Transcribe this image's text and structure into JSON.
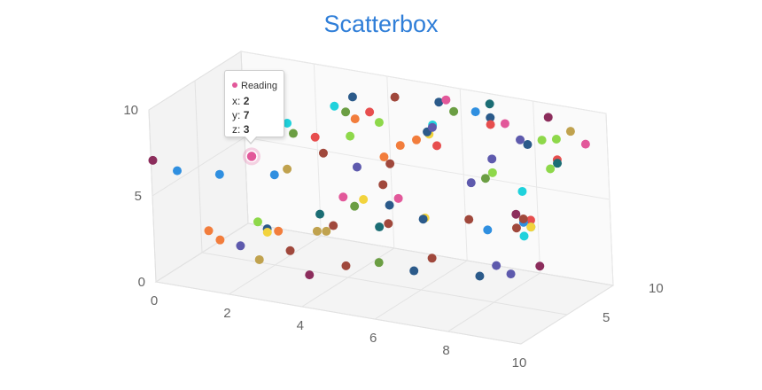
{
  "chart_data": {
    "type": "scatter",
    "title": "Scatterbox",
    "xlim": [
      0,
      10
    ],
    "ylim": [
      0,
      10
    ],
    "zlim": [
      0,
      10
    ],
    "x_ticks": [
      "0",
      "2",
      "4",
      "6",
      "8",
      "10"
    ],
    "y_ticks": [
      "0",
      "5",
      "10"
    ],
    "z_ticks": [
      "5",
      "10"
    ],
    "grid": true,
    "series": [
      {
        "name": "Reading",
        "points": [
          {
            "x": 2,
            "y": 7,
            "z": 3,
            "color": "#e2589a"
          },
          {
            "x": 0,
            "y": 7,
            "z": 0.2,
            "color": "#8c2d5c"
          },
          {
            "x": 0.4,
            "y": 6.2,
            "z": 1.2,
            "color": "#2f8fe0"
          },
          {
            "x": 1.6,
            "y": 9,
            "z": 4.2,
            "color": "#f2d33d"
          },
          {
            "x": 1.2,
            "y": 5.8,
            "z": 2.6,
            "color": "#2f8fe0"
          },
          {
            "x": 2.4,
            "y": 5.8,
            "z": 3.8,
            "color": "#2f8fe0"
          },
          {
            "x": 2.6,
            "y": 6,
            "z": 4.4,
            "color": "#c0a24e"
          },
          {
            "x": 2.6,
            "y": 8.6,
            "z": 4.6,
            "color": "#1fd2dc"
          },
          {
            "x": 2.6,
            "y": 7.8,
            "z": 5.2,
            "color": "#6b9e43"
          },
          {
            "x": 3.4,
            "y": 9.2,
            "z": 6.6,
            "color": "#1fd2dc"
          },
          {
            "x": 3.6,
            "y": 8.8,
            "z": 7,
            "color": "#6b9e43"
          },
          {
            "x": 3.8,
            "y": 8.4,
            "z": 7.2,
            "color": "#f27d3c"
          },
          {
            "x": 3.6,
            "y": 9.4,
            "z": 7.8,
            "color": "#2b5a8a"
          },
          {
            "x": 4,
            "y": 8.6,
            "z": 8,
            "color": "#e74e4e"
          },
          {
            "x": 4.4,
            "y": 9.2,
            "z": 9.2,
            "color": "#a0483c"
          },
          {
            "x": 4.2,
            "y": 8,
            "z": 8.2,
            "color": "#8ed84a"
          },
          {
            "x": 3.8,
            "y": 7.6,
            "z": 6.6,
            "color": "#8ed84a"
          },
          {
            "x": 3.2,
            "y": 7.8,
            "z": 5.2,
            "color": "#e74e4e"
          },
          {
            "x": 3.2,
            "y": 6.6,
            "z": 6,
            "color": "#a0483c"
          },
          {
            "x": 3.8,
            "y": 5.6,
            "z": 7.2,
            "color": "#5e5aad"
          },
          {
            "x": 4.6,
            "y": 6.6,
            "z": 8.8,
            "color": "#f27d3c"
          },
          {
            "x": 4.4,
            "y": 6.2,
            "z": 7.8,
            "color": "#f27d3c"
          },
          {
            "x": 4.4,
            "y": 5.6,
            "z": 8.4,
            "color": "#a0483c"
          },
          {
            "x": 5,
            "y": 7,
            "z": 9,
            "color": "#f27d3c"
          },
          {
            "x": 5.2,
            "y": 7.2,
            "z": 9.6,
            "color": "#f2d33d"
          },
          {
            "x": 5.2,
            "y": 7.4,
            "z": 9.4,
            "color": "#2b5a8a"
          },
          {
            "x": 5.4,
            "y": 7.8,
            "z": 9.2,
            "color": "#5e5aad"
          },
          {
            "x": 5.4,
            "y": 6.6,
            "z": 9.6,
            "color": "#e74e4e"
          },
          {
            "x": 5.2,
            "y": 7.6,
            "z": 10,
            "color": "#1fd2dc"
          },
          {
            "x": 5.4,
            "y": 9,
            "z": 10,
            "color": "#2b5a8a"
          },
          {
            "x": 5.6,
            "y": 9.2,
            "z": 10,
            "color": "#e2589a"
          },
          {
            "x": 5.8,
            "y": 8.6,
            "z": 10,
            "color": "#6b9e43"
          },
          {
            "x": 6.4,
            "y": 8.8,
            "z": 10,
            "color": "#2f8fe0"
          },
          {
            "x": 6.8,
            "y": 9.4,
            "z": 10,
            "color": "#1b6d74"
          },
          {
            "x": 6.8,
            "y": 8.6,
            "z": 10,
            "color": "#2b5a8a"
          },
          {
            "x": 6.8,
            "y": 8.2,
            "z": 10,
            "color": "#e74e4e"
          },
          {
            "x": 7.2,
            "y": 8.4,
            "z": 10,
            "color": "#e2589a"
          },
          {
            "x": 7.6,
            "y": 7.6,
            "z": 10,
            "color": "#5e5aad"
          },
          {
            "x": 7.8,
            "y": 7.4,
            "z": 10,
            "color": "#2b5a8a"
          },
          {
            "x": 8.2,
            "y": 7.8,
            "z": 10,
            "color": "#8ed84a"
          },
          {
            "x": 8.6,
            "y": 8,
            "z": 10,
            "color": "#8ed84a"
          },
          {
            "x": 8.4,
            "y": 9.2,
            "z": 10,
            "color": "#8c2d5c"
          },
          {
            "x": 8.6,
            "y": 6.8,
            "z": 10,
            "color": "#e74e4e"
          },
          {
            "x": 9.0,
            "y": 8.6,
            "z": 10,
            "color": "#c0a24e"
          },
          {
            "x": 9.4,
            "y": 8,
            "z": 10,
            "color": "#e2589a"
          },
          {
            "x": 8.4,
            "y": 6.2,
            "z": 10,
            "color": "#8ed84a"
          },
          {
            "x": 8.6,
            "y": 6.6,
            "z": 10,
            "color": "#1b6d74"
          },
          {
            "x": 6.8,
            "y": 6.2,
            "z": 10,
            "color": "#5e5aad"
          },
          {
            "x": 6.8,
            "y": 5.4,
            "z": 10,
            "color": "#8ed84a"
          },
          {
            "x": 6.6,
            "y": 5,
            "z": 10,
            "color": "#6b9e43"
          },
          {
            "x": 6.2,
            "y": 4.6,
            "z": 10,
            "color": "#5e5aad"
          },
          {
            "x": 7.6,
            "y": 4.6,
            "z": 10,
            "color": "#1fd2dc"
          },
          {
            "x": 1.2,
            "y": 3,
            "z": 1.2,
            "color": "#f27d3c"
          },
          {
            "x": 1.4,
            "y": 2.4,
            "z": 1.6,
            "color": "#f27d3c"
          },
          {
            "x": 1.8,
            "y": 2,
            "z": 2.2,
            "color": "#5e5aad"
          },
          {
            "x": 2.2,
            "y": 3.4,
            "z": 2.6,
            "color": "#8ed84a"
          },
          {
            "x": 2.4,
            "y": 3,
            "z": 2.8,
            "color": "#2b5a8a"
          },
          {
            "x": 2.6,
            "y": 2.8,
            "z": 3.2,
            "color": "#f27d3c"
          },
          {
            "x": 2.4,
            "y": 2.8,
            "z": 2.8,
            "color": "#f2d33d"
          },
          {
            "x": 2.2,
            "y": 1.2,
            "z": 2.6,
            "color": "#c0a24e"
          },
          {
            "x": 2.8,
            "y": 1.6,
            "z": 3.6,
            "color": "#a0483c"
          },
          {
            "x": 3.4,
            "y": 3.6,
            "z": 4.6,
            "color": "#1b6d74"
          },
          {
            "x": 3.6,
            "y": 2.8,
            "z": 5.2,
            "color": "#a0483c"
          },
          {
            "x": 3.2,
            "y": 2.4,
            "z": 5,
            "color": "#c0a24e"
          },
          {
            "x": 3.4,
            "y": 2.4,
            "z": 5.2,
            "color": "#c0a24e"
          },
          {
            "x": 3.8,
            "y": 4.4,
            "z": 5.6,
            "color": "#e2589a"
          },
          {
            "x": 4.0,
            "y": 3.8,
            "z": 6,
            "color": "#6b9e43"
          },
          {
            "x": 4.2,
            "y": 4.2,
            "z": 6.2,
            "color": "#f2d33d"
          },
          {
            "x": 4.6,
            "y": 5,
            "z": 6.8,
            "color": "#a0483c"
          },
          {
            "x": 4.8,
            "y": 4,
            "z": 7.6,
            "color": "#e2589a"
          },
          {
            "x": 4.6,
            "y": 3.6,
            "z": 7.4,
            "color": "#2b5a8a"
          },
          {
            "x": 4.6,
            "y": 2.6,
            "z": 7.2,
            "color": "#a0483c"
          },
          {
            "x": 4.4,
            "y": 2.4,
            "z": 7,
            "color": "#1b6d74"
          },
          {
            "x": 5.2,
            "y": 2.6,
            "z": 8.6,
            "color": "#2b5a8a"
          },
          {
            "x": 5.2,
            "y": 2.6,
            "z": 8.8,
            "color": "#f2d33d"
          },
          {
            "x": 6.2,
            "y": 2.6,
            "z": 9.6,
            "color": "#a0483c"
          },
          {
            "x": 6.6,
            "y": 2,
            "z": 10,
            "color": "#2f8fe0"
          },
          {
            "x": 7.4,
            "y": 2.4,
            "z": 10,
            "color": "#a0483c"
          },
          {
            "x": 7.4,
            "y": 3.2,
            "z": 10,
            "color": "#8c2d5c"
          },
          {
            "x": 7.8,
            "y": 3,
            "z": 10,
            "color": "#e74e4e"
          },
          {
            "x": 7.6,
            "y": 2.8,
            "z": 10,
            "color": "#2f8fe0"
          },
          {
            "x": 7.8,
            "y": 2.6,
            "z": 10,
            "color": "#1fd2dc"
          },
          {
            "x": 7.8,
            "y": 2.6,
            "z": 10,
            "color": "#f2d33d"
          },
          {
            "x": 7.6,
            "y": 3,
            "z": 10,
            "color": "#a0483c"
          },
          {
            "x": 7.6,
            "y": 2,
            "z": 10,
            "color": "#1fd2dc"
          },
          {
            "x": 3.2,
            "y": 0.2,
            "z": 4,
            "color": "#8c2d5c"
          },
          {
            "x": 3.8,
            "y": 0.4,
            "z": 5.6,
            "color": "#a0483c"
          },
          {
            "x": 4.4,
            "y": 0.4,
            "z": 6.8,
            "color": "#6b9e43"
          },
          {
            "x": 5.4,
            "y": 0.4,
            "z": 8.6,
            "color": "#a0483c"
          },
          {
            "x": 5.2,
            "y": 0,
            "z": 7.4,
            "color": "#2b5a8a"
          },
          {
            "x": 6.8,
            "y": 0,
            "z": 10,
            "color": "#5e5aad"
          },
          {
            "x": 6.8,
            "y": 0,
            "z": 8.2,
            "color": "#2b5a8a"
          },
          {
            "x": 7.4,
            "y": 0,
            "z": 9.2,
            "color": "#5e5aad"
          },
          {
            "x": 8.0,
            "y": 0.4,
            "z": 10,
            "color": "#8c2d5c"
          }
        ]
      }
    ]
  },
  "tooltip": {
    "series_name": "Reading",
    "series_color": "#e2589a",
    "x_label": "x:",
    "x_value": "2",
    "y_label": "y:",
    "y_value": "7",
    "z_label": "z:",
    "z_value": "3"
  }
}
